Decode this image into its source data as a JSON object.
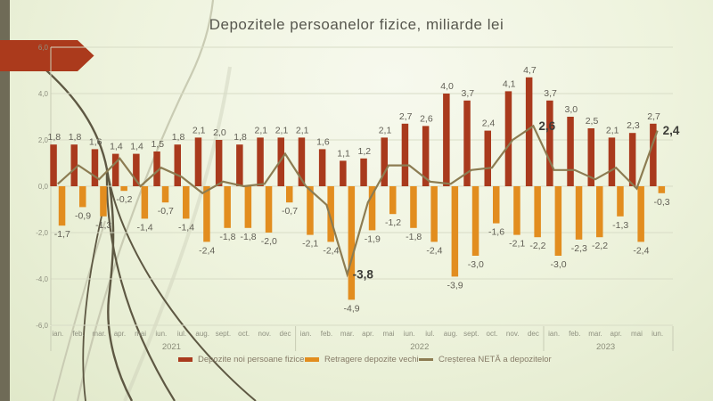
{
  "slide": {
    "title": "Depozitele persoanelor fizice, miliarde lei"
  },
  "theme": {
    "background_light": "#f7f9ee",
    "background_dark": "#e0e8c9",
    "sidebar_color": "#6f6b57",
    "accent_arrow": "#ab3a1c",
    "vine_dark": "#5e5843",
    "vine_light": "#c9cbb3",
    "gridline_color": "#d8dcc6",
    "title_color": "#57574e"
  },
  "chart_data": {
    "type": "bar+line",
    "title": "Depozitele persoanelor fizice, miliarde lei",
    "ylabel": "",
    "xlabel": "",
    "ylim": [
      -6,
      6
    ],
    "grid": true,
    "legend_position": "bottom",
    "yticks": [
      "6,0",
      "4,0",
      "2,0",
      "0,0",
      "-2,0",
      "-4,0",
      "-6,0"
    ],
    "categories": [
      "ian.",
      "feb.",
      "mar.",
      "apr.",
      "mai",
      "iun.",
      "iul.",
      "aug.",
      "sept.",
      "oct.",
      "nov.",
      "dec",
      "ian.",
      "feb.",
      "mar.",
      "apr.",
      "mai",
      "iun.",
      "iul.",
      "aug.",
      "sept.",
      "oct.",
      "nov.",
      "dec",
      "ian.",
      "feb.",
      "mar.",
      "apr.",
      "mai",
      "iun."
    ],
    "year_groups": [
      {
        "label": "2021",
        "start": 0,
        "end": 11
      },
      {
        "label": "2022",
        "start": 12,
        "end": 23
      },
      {
        "label": "2023",
        "start": 24,
        "end": 29
      }
    ],
    "series": [
      {
        "name": "Depozite noi persoane fizice",
        "type": "bar",
        "color": "#a93a1d",
        "values": [
          1.8,
          1.8,
          1.6,
          1.4,
          1.4,
          1.5,
          1.8,
          2.1,
          2.0,
          1.8,
          2.1,
          2.1,
          2.1,
          1.6,
          1.1,
          1.2,
          2.1,
          2.7,
          2.6,
          4.0,
          3.7,
          2.4,
          4.1,
          4.7,
          3.7,
          3.0,
          2.5,
          2.1,
          2.3,
          2.7
        ]
      },
      {
        "name": "Retragere depozite vechi",
        "type": "bar",
        "color": "#e28d1f",
        "values": [
          -1.7,
          -0.9,
          -1.3,
          -0.2,
          -1.4,
          -0.7,
          -1.4,
          -2.4,
          -1.8,
          -1.8,
          -2.0,
          -0.7,
          -2.1,
          -2.4,
          -4.9,
          -1.9,
          -1.2,
          -1.8,
          -2.4,
          -3.9,
          -3.0,
          -1.6,
          -2.1,
          -2.2,
          -3.0,
          -2.3,
          -2.2,
          -1.3,
          -2.4,
          -0.3
        ]
      },
      {
        "name": "Creșterea NETĂ  a depozitelor",
        "type": "line",
        "color": "#8c7c52",
        "values": [
          0.1,
          0.9,
          0.3,
          1.2,
          0.0,
          0.8,
          0.4,
          -0.3,
          0.2,
          0.0,
          0.1,
          1.4,
          0.0,
          -0.8,
          -3.8,
          -0.7,
          0.9,
          0.9,
          0.2,
          0.1,
          0.7,
          0.8,
          2.0,
          2.6,
          0.7,
          0.7,
          0.3,
          0.8,
          -0.1,
          2.4
        ],
        "labeled_points": [
          {
            "index": 14,
            "label": "-3,8"
          },
          {
            "index": 23,
            "label": "2,6"
          },
          {
            "index": 29,
            "label": "2,4"
          }
        ]
      }
    ]
  }
}
